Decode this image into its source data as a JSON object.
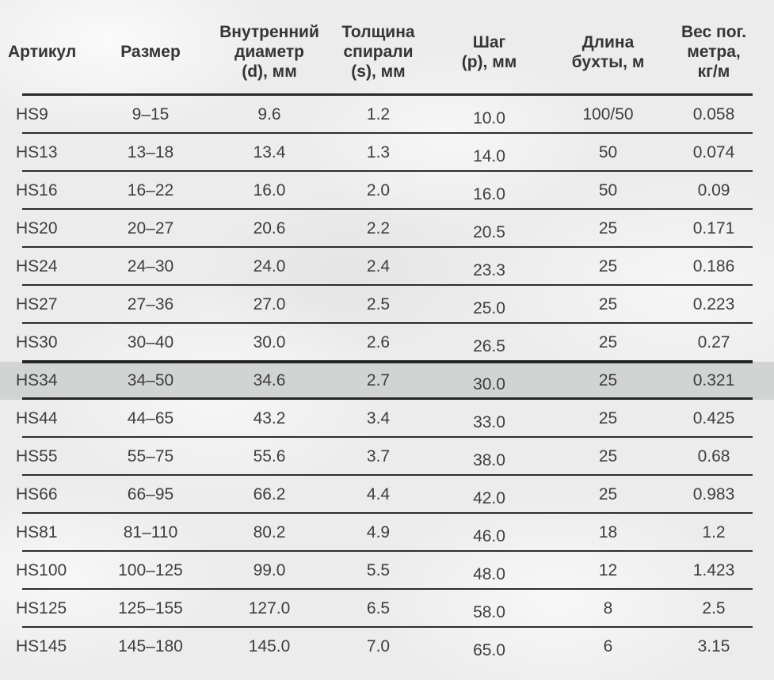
{
  "colors": {
    "background": "#ebeceb",
    "highlight_row": "#d2d3d3",
    "rule_line": "#2c2d2d",
    "text": "#3d3e3e"
  },
  "table": {
    "columns": [
      {
        "label": "Артикул"
      },
      {
        "label": "Размер"
      },
      {
        "label": "Внутренний\nдиаметр\n(d), мм"
      },
      {
        "label": "Толщина\nспирали\n(s), мм"
      },
      {
        "label": "Шаг\n(p), мм"
      },
      {
        "label": "Длина\nбухты, м"
      },
      {
        "label": "Вес пог.\nметра,\nкг/м"
      }
    ],
    "rows": [
      {
        "cells": [
          "HS9",
          "9–15",
          "9.6",
          "1.2",
          "10.0",
          "100/50",
          "0.058"
        ],
        "highlighted": false
      },
      {
        "cells": [
          "HS13",
          "13–18",
          "13.4",
          "1.3",
          "14.0",
          "50",
          "0.074"
        ],
        "highlighted": false
      },
      {
        "cells": [
          "HS16",
          "16–22",
          "16.0",
          "2.0",
          "16.0",
          "50",
          "0.09"
        ],
        "highlighted": false
      },
      {
        "cells": [
          "HS20",
          "20–27",
          "20.6",
          "2.2",
          "20.5",
          "25",
          "0.171"
        ],
        "highlighted": false
      },
      {
        "cells": [
          "HS24",
          "24–30",
          "24.0",
          "2.4",
          "23.3",
          "25",
          "0.186"
        ],
        "highlighted": false
      },
      {
        "cells": [
          "HS27",
          "27–36",
          "27.0",
          "2.5",
          "25.0",
          "25",
          "0.223"
        ],
        "highlighted": false
      },
      {
        "cells": [
          "HS30",
          "30–40",
          "30.0",
          "2.6",
          "26.5",
          "25",
          "0.27"
        ],
        "highlighted": false
      },
      {
        "cells": [
          "HS34",
          "34–50",
          "34.6",
          "2.7",
          "30.0",
          "25",
          "0.321"
        ],
        "highlighted": true
      },
      {
        "cells": [
          "HS44",
          "44–65",
          "43.2",
          "3.4",
          "33.0",
          "25",
          "0.425"
        ],
        "highlighted": false
      },
      {
        "cells": [
          "HS55",
          "55–75",
          "55.6",
          "3.7",
          "38.0",
          "25",
          "0.68"
        ],
        "highlighted": false
      },
      {
        "cells": [
          "HS66",
          "66–95",
          "66.2",
          "4.4",
          "42.0",
          "25",
          "0.983"
        ],
        "highlighted": false
      },
      {
        "cells": [
          "HS81",
          "81–110",
          "80.2",
          "4.9",
          "46.0",
          "18",
          "1.2"
        ],
        "highlighted": false
      },
      {
        "cells": [
          "HS100",
          "100–125",
          "99.0",
          "5.5",
          "48.0",
          "12",
          "1.423"
        ],
        "highlighted": false
      },
      {
        "cells": [
          "HS125",
          "125–155",
          "127.0",
          "6.5",
          "58.0",
          "8",
          "2.5"
        ],
        "highlighted": false
      },
      {
        "cells": [
          "HS145",
          "145–180",
          "145.0",
          "7.0",
          "65.0",
          "6",
          "3.15"
        ],
        "highlighted": false
      }
    ]
  },
  "chart_data": {
    "type": "table",
    "title": "",
    "columns": [
      "Артикул",
      "Размер",
      "Внутренний диаметр (d), мм",
      "Толщина спирали (s), мм",
      "Шаг (p), мм",
      "Длина бухты, м",
      "Вес пог. метра, кг/м"
    ],
    "rows": [
      [
        "HS9",
        "9–15",
        9.6,
        1.2,
        10.0,
        "100/50",
        0.058
      ],
      [
        "HS13",
        "13–18",
        13.4,
        1.3,
        14.0,
        "50",
        0.074
      ],
      [
        "HS16",
        "16–22",
        16.0,
        2.0,
        16.0,
        "50",
        0.09
      ],
      [
        "HS20",
        "20–27",
        20.6,
        2.2,
        20.5,
        "25",
        0.171
      ],
      [
        "HS24",
        "24–30",
        24.0,
        2.4,
        23.3,
        "25",
        0.186
      ],
      [
        "HS27",
        "27–36",
        27.0,
        2.5,
        25.0,
        "25",
        0.223
      ],
      [
        "HS30",
        "30–40",
        30.0,
        2.6,
        26.5,
        "25",
        0.27
      ],
      [
        "HS34",
        "34–50",
        34.6,
        2.7,
        30.0,
        "25",
        0.321
      ],
      [
        "HS44",
        "44–65",
        43.2,
        3.4,
        33.0,
        "25",
        0.425
      ],
      [
        "HS55",
        "55–75",
        55.6,
        3.7,
        38.0,
        "25",
        0.68
      ],
      [
        "HS66",
        "66–95",
        66.2,
        4.4,
        42.0,
        "25",
        0.983
      ],
      [
        "HS81",
        "81–110",
        80.2,
        4.9,
        46.0,
        "18",
        1.2
      ],
      [
        "HS100",
        "100–125",
        99.0,
        5.5,
        48.0,
        "12",
        1.423
      ],
      [
        "HS125",
        "125–155",
        127.0,
        6.5,
        58.0,
        "8",
        2.5
      ],
      [
        "HS145",
        "145–180",
        145.0,
        7.0,
        65.0,
        "6",
        3.15
      ]
    ],
    "highlighted_row": "HS34"
  }
}
